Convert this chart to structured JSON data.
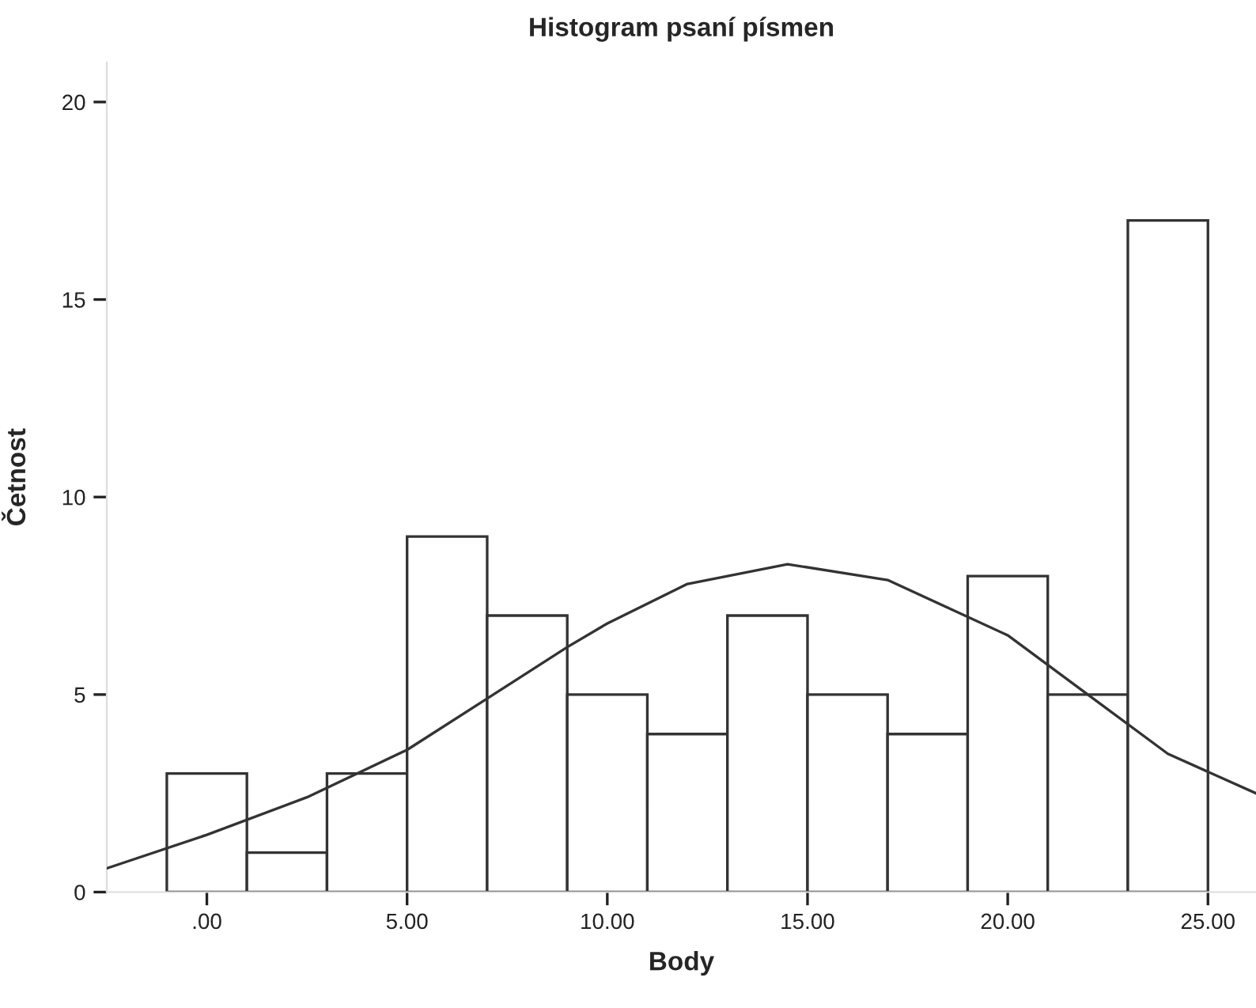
{
  "chart_data": {
    "type": "histogram",
    "title": "Histogram psaní písmen",
    "xlabel": "Body",
    "ylabel": "Četnost",
    "bins": [
      -1,
      1,
      3,
      5,
      7,
      9,
      11,
      13,
      15,
      17,
      19,
      21,
      23,
      25
    ],
    "values": [
      3,
      1,
      3,
      9,
      7,
      5,
      4,
      7,
      5,
      4,
      8,
      5,
      17
    ],
    "color": "#ffffff",
    "series": [
      {
        "type": "line",
        "color": "#333333",
        "x": [
          -2.5,
          0,
          2.5,
          5,
          7,
          9,
          10,
          12,
          14.5,
          17,
          20,
          22,
          24,
          26.2
        ],
        "values": [
          0.6,
          1.45,
          2.4,
          3.6,
          4.9,
          6.2,
          6.8,
          7.8,
          8.3,
          7.9,
          6.5,
          5.0,
          3.5,
          2.5
        ]
      }
    ],
    "xlim": [
      -2.5,
      26.2
    ],
    "ylim": [
      0,
      21
    ],
    "xticks": [
      {
        "value": 0,
        "label": ".00"
      },
      {
        "value": 5,
        "label": "5.00"
      },
      {
        "value": 10,
        "label": "10.00"
      },
      {
        "value": 15,
        "label": "15.00"
      },
      {
        "value": 20,
        "label": "20.00"
      },
      {
        "value": 25,
        "label": "25.00"
      }
    ],
    "yticks": [
      0,
      5,
      10,
      15,
      20
    ],
    "grid": false,
    "legend": false
  }
}
